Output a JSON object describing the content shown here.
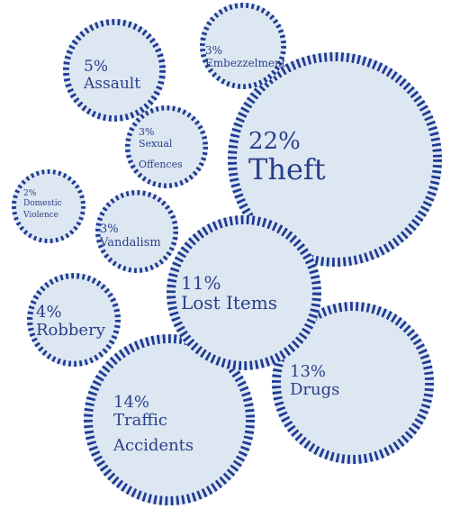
{
  "chart_data": {
    "type": "bubble",
    "title": "",
    "unit": "%",
    "colors": {
      "fill": "#dde7f2",
      "ring": "#1f3a93",
      "text": "#2a3f8a"
    },
    "items": [
      {
        "category": "Theft",
        "pct_label": "22%",
        "value": 22,
        "label_lines": [
          "Theft"
        ]
      },
      {
        "category": "Traffic Accidents",
        "pct_label": "14%",
        "value": 14,
        "label_lines": [
          "Traffic",
          "Accidents"
        ]
      },
      {
        "category": "Drugs",
        "pct_label": "13%",
        "value": 13,
        "label_lines": [
          "Drugs"
        ]
      },
      {
        "category": "Lost Items",
        "pct_label": "11%",
        "value": 11,
        "label_lines": [
          "Lost Items"
        ]
      },
      {
        "category": "Assault",
        "pct_label": "5%",
        "value": 5,
        "label_lines": [
          "Assault"
        ]
      },
      {
        "category": "Robbery",
        "pct_label": "4%",
        "value": 4,
        "label_lines": [
          "Robbery"
        ]
      },
      {
        "category": "Embezzelment",
        "pct_label": "3%",
        "value": 3,
        "label_lines": [
          "Embezzelment"
        ]
      },
      {
        "category": "Sexual Offences",
        "pct_label": "3%",
        "value": 3,
        "label_lines": [
          "Sexual",
          "Offences"
        ]
      },
      {
        "category": "Vandalism",
        "pct_label": "3%",
        "value": 3,
        "label_lines": [
          "Vandalism"
        ]
      },
      {
        "category": "Domestic Violence",
        "pct_label": "2%",
        "value": 2,
        "label_lines": [
          "Domestic",
          "Violence"
        ]
      }
    ]
  }
}
